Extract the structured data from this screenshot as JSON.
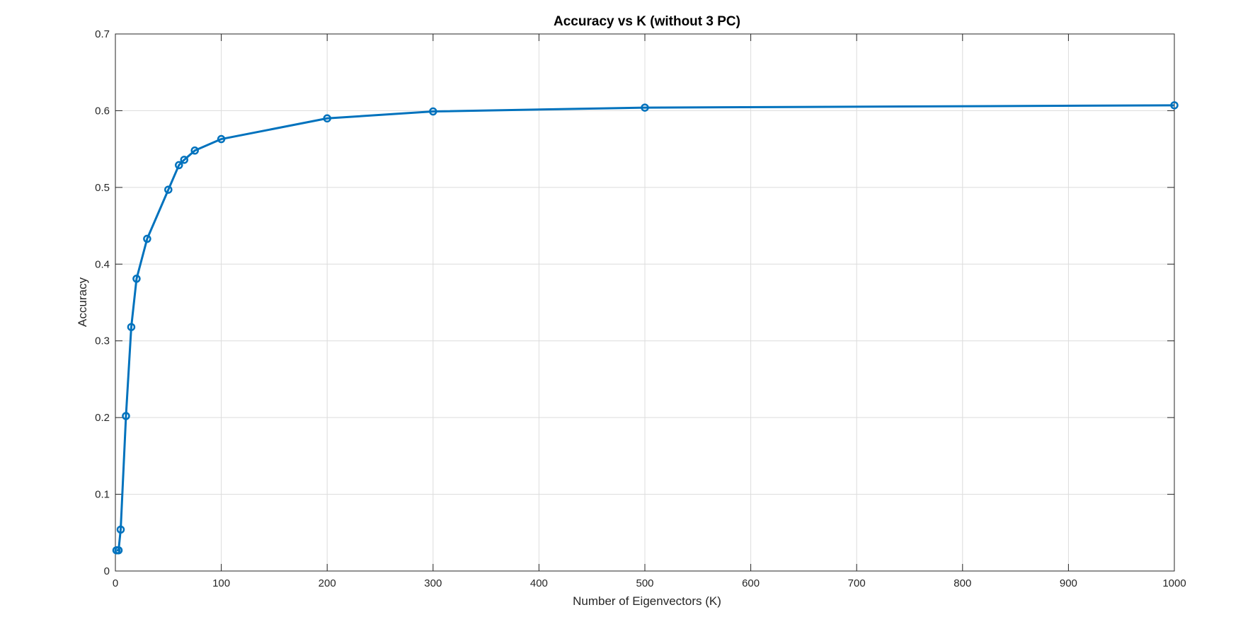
{
  "chart_data": {
    "type": "line",
    "title": "Accuracy vs K (without 3 PC)",
    "xlabel": "Number of Eigenvectors (K)",
    "ylabel": "Accuracy",
    "xlim": [
      0,
      1000
    ],
    "ylim": [
      0,
      0.7
    ],
    "xticks": [
      0,
      100,
      200,
      300,
      400,
      500,
      600,
      700,
      800,
      900,
      1000
    ],
    "xtick_labels": [
      "0",
      "100",
      "200",
      "300",
      "400",
      "500",
      "600",
      "700",
      "800",
      "900",
      "1000"
    ],
    "yticks": [
      0,
      0.1,
      0.2,
      0.3,
      0.4,
      0.5,
      0.6,
      0.7
    ],
    "ytick_labels": [
      "0",
      "0.1",
      "0.2",
      "0.3",
      "0.4",
      "0.5",
      "0.6",
      "0.7"
    ],
    "grid": true,
    "legend": "none",
    "series": [
      {
        "color": "#0072bd",
        "marker": "circle",
        "x": [
          1,
          3,
          5,
          10,
          15,
          20,
          30,
          50,
          60,
          65,
          75,
          100,
          200,
          300,
          500,
          1000
        ],
        "values": [
          0.027,
          0.027,
          0.054,
          0.202,
          0.318,
          0.381,
          0.433,
          0.497,
          0.529,
          0.536,
          0.548,
          0.563,
          0.59,
          0.599,
          0.604,
          0.607
        ]
      }
    ]
  }
}
